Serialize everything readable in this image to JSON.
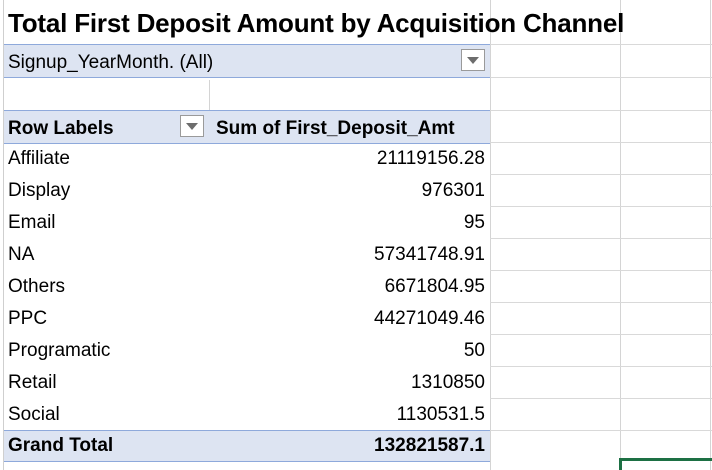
{
  "title": "Total First Deposit Amount by Acquisition Channel",
  "filter": {
    "label": "Signup_YearMonth.",
    "value": "(All)",
    "text": "Signup_YearMonth.  (All)"
  },
  "header": {
    "row_labels": "Row Labels",
    "value_column": "Sum of First_Deposit_Amt"
  },
  "rows": [
    {
      "label": "Affiliate",
      "value": "21119156.28"
    },
    {
      "label": "Display",
      "value": "976301"
    },
    {
      "label": "Email",
      "value": "95"
    },
    {
      "label": "NA",
      "value": "57341748.91"
    },
    {
      "label": "Others",
      "value": "6671804.95"
    },
    {
      "label": "PPC",
      "value": "44271049.46"
    },
    {
      "label": "Programatic",
      "value": "50"
    },
    {
      "label": "Retail",
      "value": "1310850"
    },
    {
      "label": "Social",
      "value": "1130531.5"
    }
  ],
  "grand_total": {
    "label": "Grand Total",
    "value": "132821587.1"
  },
  "icons": {
    "filter_dropdown": "chevron-down-icon",
    "row_labels_dropdown": "chevron-down-icon"
  },
  "colors": {
    "pivot_band": "#dde4f2",
    "pivot_border": "#8ea9db",
    "active_cell": "#1d7044"
  }
}
